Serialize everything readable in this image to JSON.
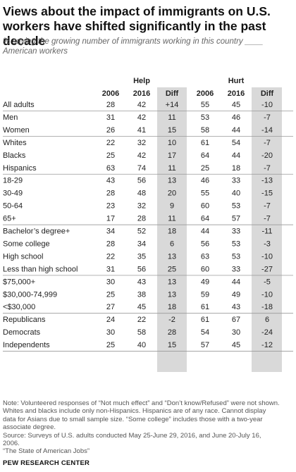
{
  "title": "Views about the impact of immigrants on U.S. workers have shifted significantly in the past decade",
  "subtitle": "% saying the growing number of immigrants working in this country ____ American workers",
  "notes": [
    "Note: Volunteered responses of “Not much effect” and “Don’t know/Refused” were not shown.",
    "Whites and blacks include only non-Hispanics. Hispanics are of any race. Cannot display",
    "data for Asians due to small sample size. “Some college” includes those with a two-year",
    "associate degree.",
    "Source: Surveys of U.S. adults conducted May 25-June 29, 2016, and June 20-July 16,",
    "2006.",
    "“The State of American Jobs”"
  ],
  "org": "PEW RESEARCH CENTER",
  "colors": {
    "diff_band": "#d9d9d9",
    "rule": "#999999",
    "text": "#222222"
  },
  "chart_data": {
    "type": "table",
    "groups": [
      {
        "label": "Help",
        "columns": [
          "2006",
          "2016",
          "Diff"
        ]
      },
      {
        "label": "Hurt",
        "columns": [
          "2006",
          "2016",
          "Diff"
        ]
      }
    ],
    "sections": [
      {
        "rows": [
          {
            "label": "All adults",
            "help": [
              "28",
              "42",
              "+14"
            ],
            "hurt": [
              "55",
              "45",
              "-10"
            ]
          }
        ]
      },
      {
        "rows": [
          {
            "label": "Men",
            "help": [
              "31",
              "42",
              "11"
            ],
            "hurt": [
              "53",
              "46",
              "-7"
            ]
          },
          {
            "label": "Women",
            "help": [
              "26",
              "41",
              "15"
            ],
            "hurt": [
              "58",
              "44",
              "-14"
            ]
          }
        ]
      },
      {
        "rows": [
          {
            "label": "Whites",
            "help": [
              "22",
              "32",
              "10"
            ],
            "hurt": [
              "61",
              "54",
              "-7"
            ]
          },
          {
            "label": "Blacks",
            "help": [
              "25",
              "42",
              "17"
            ],
            "hurt": [
              "64",
              "44",
              "-20"
            ]
          },
          {
            "label": "Hispanics",
            "help": [
              "63",
              "74",
              "11"
            ],
            "hurt": [
              "25",
              "18",
              "-7"
            ]
          }
        ]
      },
      {
        "rows": [
          {
            "label": "18-29",
            "help": [
              "43",
              "56",
              "13"
            ],
            "hurt": [
              "46",
              "33",
              "-13"
            ]
          },
          {
            "label": "30-49",
            "help": [
              "28",
              "48",
              "20"
            ],
            "hurt": [
              "55",
              "40",
              "-15"
            ]
          },
          {
            "label": "50-64",
            "help": [
              "23",
              "32",
              "9"
            ],
            "hurt": [
              "60",
              "53",
              "-7"
            ]
          },
          {
            "label": "65+",
            "help": [
              "17",
              "28",
              "11"
            ],
            "hurt": [
              "64",
              "57",
              "-7"
            ]
          }
        ]
      },
      {
        "rows": [
          {
            "label": "Bachelor’s degree+",
            "help": [
              "34",
              "52",
              "18"
            ],
            "hurt": [
              "44",
              "33",
              "-11"
            ]
          },
          {
            "label": "Some college",
            "help": [
              "28",
              "34",
              "6"
            ],
            "hurt": [
              "56",
              "53",
              "-3"
            ]
          },
          {
            "label": "High school",
            "help": [
              "22",
              "35",
              "13"
            ],
            "hurt": [
              "63",
              "53",
              "-10"
            ]
          },
          {
            "label": "Less than high school",
            "help": [
              "31",
              "56",
              "25"
            ],
            "hurt": [
              "60",
              "33",
              "-27"
            ]
          }
        ]
      },
      {
        "rows": [
          {
            "label": "$75,000+",
            "help": [
              "30",
              "43",
              "13"
            ],
            "hurt": [
              "49",
              "44",
              "-5"
            ]
          },
          {
            "label": "$30,000-74,999",
            "help": [
              "25",
              "38",
              "13"
            ],
            "hurt": [
              "59",
              "49",
              "-10"
            ]
          },
          {
            "label": "<$30,000",
            "help": [
              "27",
              "45",
              "18"
            ],
            "hurt": [
              "61",
              "43",
              "-18"
            ]
          }
        ]
      },
      {
        "rows": [
          {
            "label": "Republicans",
            "help": [
              "24",
              "22",
              "-2"
            ],
            "hurt": [
              "61",
              "67",
              "6"
            ]
          },
          {
            "label": "Democrats",
            "help": [
              "30",
              "58",
              "28"
            ],
            "hurt": [
              "54",
              "30",
              "-24"
            ]
          },
          {
            "label": "Independents",
            "help": [
              "25",
              "40",
              "15"
            ],
            "hurt": [
              "57",
              "45",
              "-12"
            ]
          }
        ]
      }
    ]
  }
}
